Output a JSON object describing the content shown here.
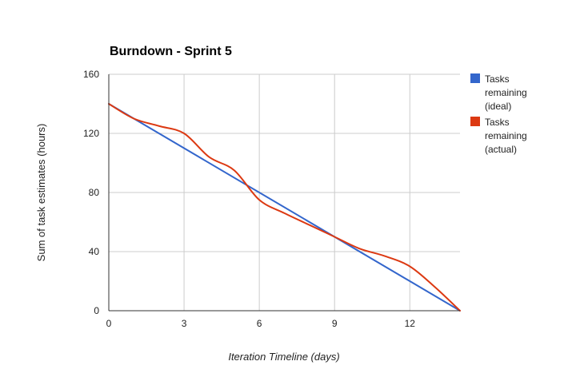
{
  "chart_data": {
    "type": "line",
    "title": "Burndown - Sprint 5",
    "xlabel": "Iteration Timeline (days)",
    "ylabel": "Sum of task estimates (hours)",
    "xlim": [
      0,
      14
    ],
    "ylim": [
      0,
      160
    ],
    "xticks": [
      0,
      3,
      6,
      9,
      12
    ],
    "yticks": [
      0,
      40,
      80,
      120,
      160
    ],
    "grid": true,
    "legend_position": "right",
    "series": [
      {
        "name": "Tasks remaining (ideal)",
        "legend_lines": [
          "Tasks",
          "remaining",
          "(ideal)"
        ],
        "color": "#3366CC",
        "x": [
          0,
          14
        ],
        "y": [
          140,
          0
        ]
      },
      {
        "name": "Tasks remaining (actual)",
        "legend_lines": [
          "Tasks",
          "remaining",
          "(actual)"
        ],
        "color": "#DC3912",
        "x": [
          0,
          1,
          2,
          3,
          4,
          5,
          6,
          7,
          8,
          9,
          10,
          11,
          12,
          13,
          14
        ],
        "y": [
          140,
          130,
          125,
          120,
          104,
          95,
          75,
          66,
          58,
          50,
          42,
          37,
          30,
          16,
          0
        ]
      }
    ]
  }
}
